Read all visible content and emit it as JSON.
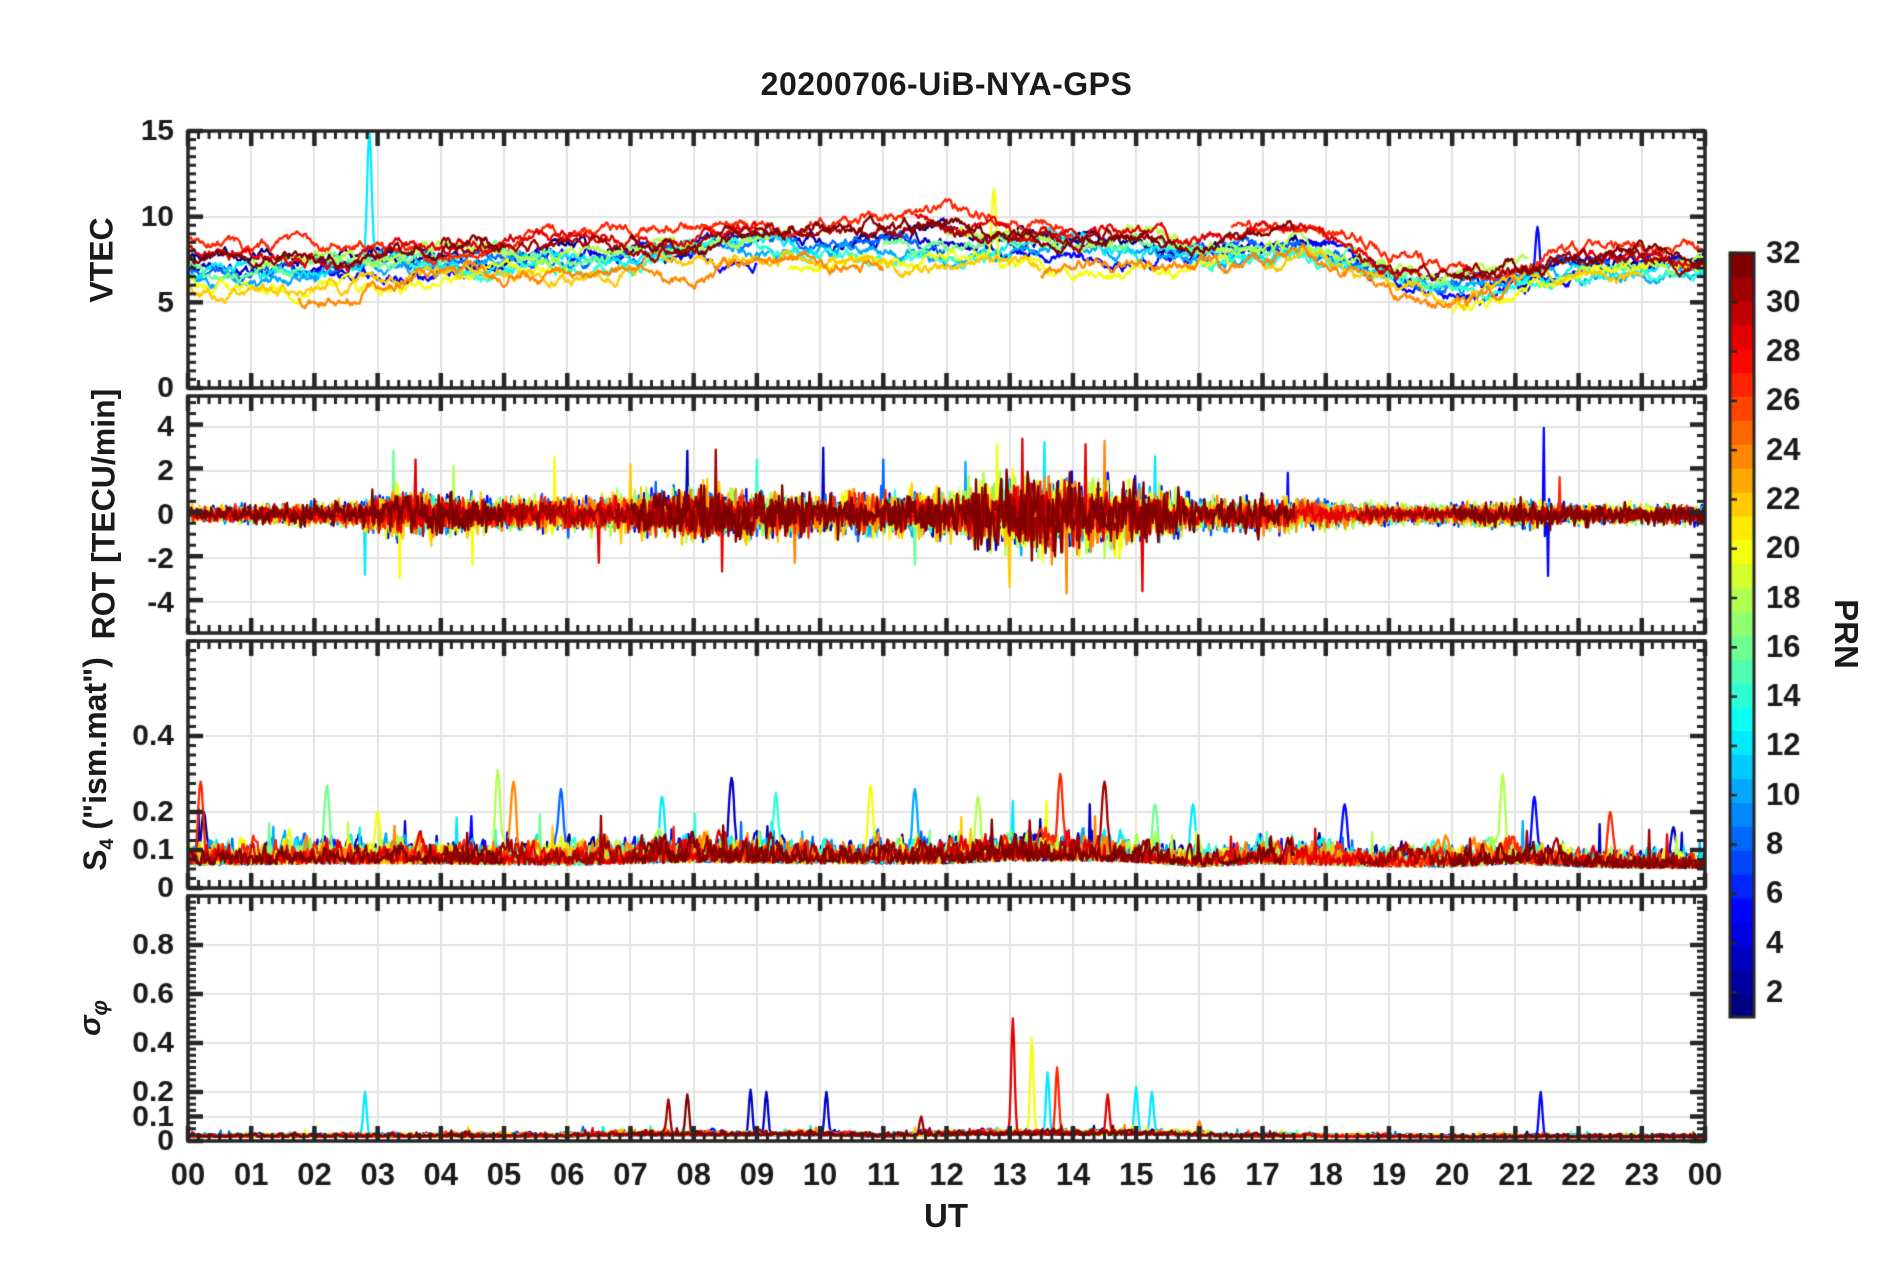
{
  "figure": {
    "bg": "#ffffff",
    "axis_color": "#262626",
    "grid_color": "#e3e3e3",
    "text_color": "#1a1a1a"
  },
  "chart_data": {
    "type": "line",
    "title": "20200706-UiB-NYA-GPS",
    "xlabel": "UT",
    "x_range": [
      0,
      24
    ],
    "x_tick_labels": [
      "00",
      "01",
      "02",
      "03",
      "04",
      "05",
      "06",
      "07",
      "08",
      "09",
      "10",
      "11",
      "12",
      "13",
      "14",
      "15",
      "16",
      "17",
      "18",
      "19",
      "20",
      "21",
      "22",
      "23",
      "00"
    ],
    "x_minor_per_hour": 6,
    "legend": "colorbar maps line color to GPS PRN (jet colormap)",
    "colorbar": {
      "label": "PRN",
      "colormap": "jet",
      "min": 1,
      "max": 32,
      "segments": 32,
      "ticks": [
        2,
        4,
        6,
        8,
        10,
        12,
        14,
        16,
        18,
        20,
        22,
        24,
        26,
        28,
        30,
        32
      ],
      "tick_labels": [
        "2",
        "4",
        "6",
        "8",
        "10",
        "12",
        "14",
        "16",
        "18",
        "20",
        "22",
        "24",
        "26",
        "28",
        "30",
        "32"
      ]
    },
    "series_windows": [
      {
        "prn": 1,
        "vtec_offset": 0.1,
        "windows": [
          [
            0,
            7.2
          ],
          [
            10.5,
            18
          ],
          [
            21,
            24
          ]
        ]
      },
      {
        "prn": 3,
        "vtec_offset": -0.1,
        "windows": [
          [
            0,
            4.5
          ],
          [
            7.5,
            14.5
          ],
          [
            18,
            24
          ]
        ]
      },
      {
        "prn": 5,
        "vtec_offset": -0.4,
        "windows": [
          [
            2,
            9
          ],
          [
            13,
            24
          ]
        ]
      },
      {
        "prn": 8,
        "vtec_offset": -0.2,
        "windows": [
          [
            0,
            12
          ],
          [
            15.5,
            22.5
          ]
        ]
      },
      {
        "prn": 10,
        "vtec_offset": -0.5,
        "windows": [
          [
            0,
            5.5
          ],
          [
            8.5,
            17
          ],
          [
            19.5,
            24
          ]
        ]
      },
      {
        "prn": 12,
        "vtec_offset": -0.3,
        "windows": [
          [
            0,
            10
          ],
          [
            12.5,
            19
          ],
          [
            21,
            24
          ]
        ]
      },
      {
        "prn": 14,
        "vtec_offset": -0.6,
        "windows": [
          [
            3.5,
            13
          ],
          [
            16,
            24
          ]
        ]
      },
      {
        "prn": 16,
        "vtec_offset": -0.1,
        "windows": [
          [
            0,
            8
          ],
          [
            11,
            20
          ]
        ]
      },
      {
        "prn": 18,
        "vtec_offset": 0.2,
        "windows": [
          [
            1,
            9.5
          ],
          [
            12,
            21.2
          ],
          [
            22,
            24
          ]
        ]
      },
      {
        "prn": 20,
        "vtec_offset": -1.0,
        "windows": [
          [
            0,
            6
          ],
          [
            9.5,
            16.5
          ],
          [
            20,
            24
          ]
        ]
      },
      {
        "prn": 22,
        "vtec_offset": -0.9,
        "windows": [
          [
            0,
            13.5
          ],
          [
            17,
            23
          ]
        ]
      },
      {
        "prn": 24,
        "vtec_offset": -1.1,
        "windows": [
          [
            1.75,
            11
          ],
          [
            13.5,
            21
          ]
        ]
      },
      {
        "prn": 27,
        "vtec_offset": 0.8,
        "windows": [
          [
            0,
            14
          ],
          [
            16.5,
            24
          ]
        ]
      },
      {
        "prn": 29,
        "vtec_offset": 0.5,
        "windows": [
          [
            0,
            9
          ],
          [
            11.5,
            19.5
          ],
          [
            22,
            24
          ]
        ]
      },
      {
        "prn": 31,
        "vtec_offset": 0.3,
        "windows": [
          [
            4,
            15.5
          ],
          [
            18.5,
            24
          ]
        ]
      },
      {
        "prn": 32,
        "vtec_offset": 0.4,
        "windows": [
          [
            0,
            5
          ],
          [
            7,
            17.5
          ],
          [
            20,
            24
          ]
        ]
      }
    ],
    "panels": [
      {
        "id": "vtec",
        "ylabel": "VTEC",
        "ylim": [
          0,
          15
        ],
        "yticks": [
          0,
          5,
          10,
          15
        ],
        "ytick_labels": [
          "0",
          "5",
          "10",
          "15"
        ],
        "y_minor_step": 0.5,
        "envelope_t_center_spread": [
          [
            0,
            7.2,
            1.3
          ],
          [
            1,
            7.2,
            1.4
          ],
          [
            2,
            7.2,
            1.4
          ],
          [
            3,
            7.4,
            1.2
          ],
          [
            4,
            7.5,
            1.2
          ],
          [
            5,
            7.7,
            1.1
          ],
          [
            6,
            7.8,
            1.2
          ],
          [
            7,
            8.1,
            1.3
          ],
          [
            8,
            8.5,
            1.4
          ],
          [
            9,
            8.6,
            1.4
          ],
          [
            10,
            8.5,
            1.5
          ],
          [
            11,
            8.6,
            1.4
          ],
          [
            12,
            8.8,
            1.4
          ],
          [
            13,
            8.7,
            1.4
          ],
          [
            14,
            8.5,
            1.3
          ],
          [
            15,
            8.3,
            1.2
          ],
          [
            16,
            8.0,
            1.0
          ],
          [
            17,
            8.2,
            1.0
          ],
          [
            17.6,
            8.6,
            1.0
          ],
          [
            18.4,
            8.0,
            1.0
          ],
          [
            19,
            7.0,
            1.0
          ],
          [
            19.8,
            6.3,
            1.2
          ],
          [
            20.5,
            6.2,
            1.2
          ],
          [
            21,
            6.5,
            1.0
          ],
          [
            22,
            7.0,
            0.8
          ],
          [
            23,
            7.3,
            0.7
          ],
          [
            24,
            7.5,
            0.6
          ]
        ],
        "spike_events_t_prn_peak": [
          [
            2.87,
            12,
            15.0
          ],
          [
            12.75,
            20,
            11.6
          ],
          [
            21.35,
            5,
            9.4
          ]
        ]
      },
      {
        "id": "rot",
        "ylabel": "ROT [TECU/min]",
        "ylim": [
          -5.4,
          5.4
        ],
        "yticks": [
          -4,
          -2,
          0,
          2,
          4
        ],
        "ytick_labels": [
          "-4",
          "-2",
          "0",
          "2",
          "4"
        ],
        "y_minor_step": 0.5,
        "amplitude_envelope_t_amp": [
          [
            0,
            0.25
          ],
          [
            2.7,
            0.35
          ],
          [
            3.2,
            0.8
          ],
          [
            4,
            0.6
          ],
          [
            5,
            0.45
          ],
          [
            6,
            0.5
          ],
          [
            7,
            0.6
          ],
          [
            8,
            0.8
          ],
          [
            9,
            0.7
          ],
          [
            10,
            0.6
          ],
          [
            11,
            0.65
          ],
          [
            12,
            0.7
          ],
          [
            12.7,
            1.1
          ],
          [
            13.5,
            1.2
          ],
          [
            14.5,
            1.1
          ],
          [
            15.5,
            0.8
          ],
          [
            16,
            0.45
          ],
          [
            17,
            0.55
          ],
          [
            18,
            0.4
          ],
          [
            19,
            0.3
          ],
          [
            20,
            0.3
          ],
          [
            21,
            0.4
          ],
          [
            22,
            0.3
          ],
          [
            23,
            0.3
          ],
          [
            24,
            0.3
          ]
        ],
        "spike_events_t_prn_peak": [
          [
            2.8,
            12,
            -2.75
          ],
          [
            3.25,
            16,
            2.9
          ],
          [
            3.35,
            20,
            -2.9
          ],
          [
            3.6,
            29,
            2.5
          ],
          [
            4.2,
            18,
            2.2
          ],
          [
            4.5,
            20,
            -2.3
          ],
          [
            5.8,
            20,
            2.6
          ],
          [
            6.5,
            29,
            -2.2
          ],
          [
            7.0,
            22,
            2.3
          ],
          [
            7.45,
            1,
            2.6
          ],
          [
            7.9,
            3,
            2.9
          ],
          [
            8.35,
            31,
            2.95
          ],
          [
            8.45,
            29,
            -2.6
          ],
          [
            9.0,
            14,
            2.5
          ],
          [
            9.6,
            24,
            -2.2
          ],
          [
            10.05,
            3,
            3.05
          ],
          [
            11.0,
            8,
            2.5
          ],
          [
            11.5,
            16,
            -2.3
          ],
          [
            12.3,
            10,
            2.4
          ],
          [
            12.8,
            20,
            3.2
          ],
          [
            13.0,
            22,
            -3.3
          ],
          [
            13.2,
            29,
            3.45
          ],
          [
            13.55,
            12,
            3.3
          ],
          [
            13.9,
            24,
            -3.6
          ],
          [
            14.2,
            29,
            3.2
          ],
          [
            14.5,
            24,
            3.35
          ],
          [
            15.1,
            29,
            -3.5
          ],
          [
            15.3,
            12,
            2.65
          ],
          [
            17.4,
            5,
            1.9
          ],
          [
            21.45,
            5,
            3.95
          ],
          [
            21.52,
            5,
            -2.8
          ],
          [
            21.7,
            27,
            1.7
          ]
        ]
      },
      {
        "id": "s4",
        "ylabel_main": "S",
        "ylabel_sub": "4",
        "ylabel_suffix": " (\"ism.mat\")",
        "ylim": [
          0,
          0.65
        ],
        "yticks": [
          0,
          0.1,
          0.2,
          0.4
        ],
        "ytick_labels": [
          "0",
          "0.1",
          "0.2",
          "0.4"
        ],
        "y_minor_step": 0.025,
        "envelope_t_base_spread": [
          [
            0,
            0.075,
            0.05
          ],
          [
            2,
            0.08,
            0.055
          ],
          [
            4,
            0.08,
            0.05
          ],
          [
            6,
            0.075,
            0.05
          ],
          [
            8,
            0.085,
            0.06
          ],
          [
            10,
            0.08,
            0.05
          ],
          [
            12,
            0.08,
            0.055
          ],
          [
            13,
            0.09,
            0.06
          ],
          [
            14,
            0.09,
            0.06
          ],
          [
            15,
            0.085,
            0.055
          ],
          [
            16,
            0.07,
            0.045
          ],
          [
            17,
            0.08,
            0.05
          ],
          [
            18,
            0.075,
            0.05
          ],
          [
            19,
            0.07,
            0.045
          ],
          [
            20,
            0.07,
            0.05
          ],
          [
            21,
            0.08,
            0.05
          ],
          [
            22,
            0.07,
            0.045
          ],
          [
            23,
            0.065,
            0.04
          ],
          [
            24,
            0.065,
            0.04
          ]
        ],
        "spike_events_t_prn_peak": [
          [
            0.2,
            27,
            0.28
          ],
          [
            0.25,
            1,
            0.2
          ],
          [
            2.2,
            16,
            0.27
          ],
          [
            3.0,
            20,
            0.2
          ],
          [
            4.9,
            18,
            0.31
          ],
          [
            5.15,
            24,
            0.28
          ],
          [
            5.9,
            8,
            0.26
          ],
          [
            7.5,
            12,
            0.24
          ],
          [
            8.6,
            3,
            0.29
          ],
          [
            9.3,
            14,
            0.25
          ],
          [
            10.8,
            20,
            0.27
          ],
          [
            11.5,
            10,
            0.26
          ],
          [
            12.5,
            18,
            0.24
          ],
          [
            13.8,
            27,
            0.3
          ],
          [
            14.5,
            31,
            0.28
          ],
          [
            15.3,
            16,
            0.22
          ],
          [
            15.9,
            12,
            0.22
          ],
          [
            17.3,
            31,
            0.26
          ],
          [
            18.3,
            5,
            0.22
          ],
          [
            20.8,
            18,
            0.3
          ],
          [
            21.3,
            5,
            0.24
          ],
          [
            22.5,
            27,
            0.2
          ],
          [
            23.5,
            3,
            0.16
          ]
        ]
      },
      {
        "id": "sigma_phi",
        "ylabel_main": "σ",
        "ylabel_sub": "φ",
        "ylim": [
          0,
          1.0
        ],
        "yticks": [
          0,
          0.1,
          0.2,
          0.4,
          0.6,
          0.8
        ],
        "ytick_labels": [
          "0",
          "0.1",
          "0.2",
          "0.4",
          "0.6",
          "0.8"
        ],
        "y_minor_step": 0.025,
        "envelope_t_base_spread": [
          [
            0,
            0.02,
            0.012
          ],
          [
            6,
            0.022,
            0.013
          ],
          [
            7,
            0.028,
            0.018
          ],
          [
            10,
            0.028,
            0.016
          ],
          [
            11,
            0.022,
            0.013
          ],
          [
            12.5,
            0.03,
            0.02
          ],
          [
            15.5,
            0.03,
            0.018
          ],
          [
            16.5,
            0.022,
            0.012
          ],
          [
            20,
            0.018,
            0.01
          ],
          [
            24,
            0.018,
            0.01
          ]
        ],
        "spike_events_t_prn_peak": [
          [
            2.8,
            12,
            0.2
          ],
          [
            7.6,
            31,
            0.17
          ],
          [
            7.9,
            32,
            0.19
          ],
          [
            8.9,
            3,
            0.21
          ],
          [
            9.15,
            3,
            0.2
          ],
          [
            10.1,
            3,
            0.2
          ],
          [
            11.6,
            31,
            0.1
          ],
          [
            13.05,
            29,
            0.5
          ],
          [
            13.35,
            20,
            0.42
          ],
          [
            13.6,
            12,
            0.28
          ],
          [
            13.75,
            27,
            0.3
          ],
          [
            14.55,
            29,
            0.19
          ],
          [
            15.0,
            12,
            0.22
          ],
          [
            15.25,
            12,
            0.2
          ],
          [
            16.0,
            24,
            0.08
          ],
          [
            21.4,
            5,
            0.2
          ]
        ]
      }
    ],
    "render_hints": {
      "seed": 20200706,
      "samples_per_hour": 60,
      "line_width": 2.3
    }
  }
}
